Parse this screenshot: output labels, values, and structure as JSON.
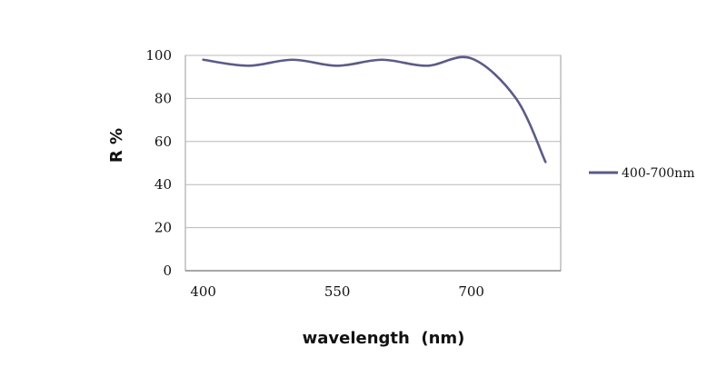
{
  "chart_data": {
    "type": "line",
    "title": "",
    "xlabel": "wavelength  (nm)",
    "ylabel": "R %",
    "x_ticks": [
      400,
      550,
      700
    ],
    "y_ticks": [
      0,
      20,
      40,
      60,
      80,
      100
    ],
    "xlim": [
      380,
      800
    ],
    "ylim": [
      0,
      100
    ],
    "grid": "horizontal",
    "legend_position": "right",
    "series": [
      {
        "name": "400-700nm",
        "color": "#5b5b88",
        "points": [
          [
            400,
            98
          ],
          [
            450,
            95.2
          ],
          [
            500,
            98
          ],
          [
            550,
            95.2
          ],
          [
            600,
            98
          ],
          [
            650,
            95.2
          ],
          [
            700,
            98.6
          ],
          [
            750,
            80
          ],
          [
            783,
            50.5
          ]
        ]
      }
    ]
  }
}
